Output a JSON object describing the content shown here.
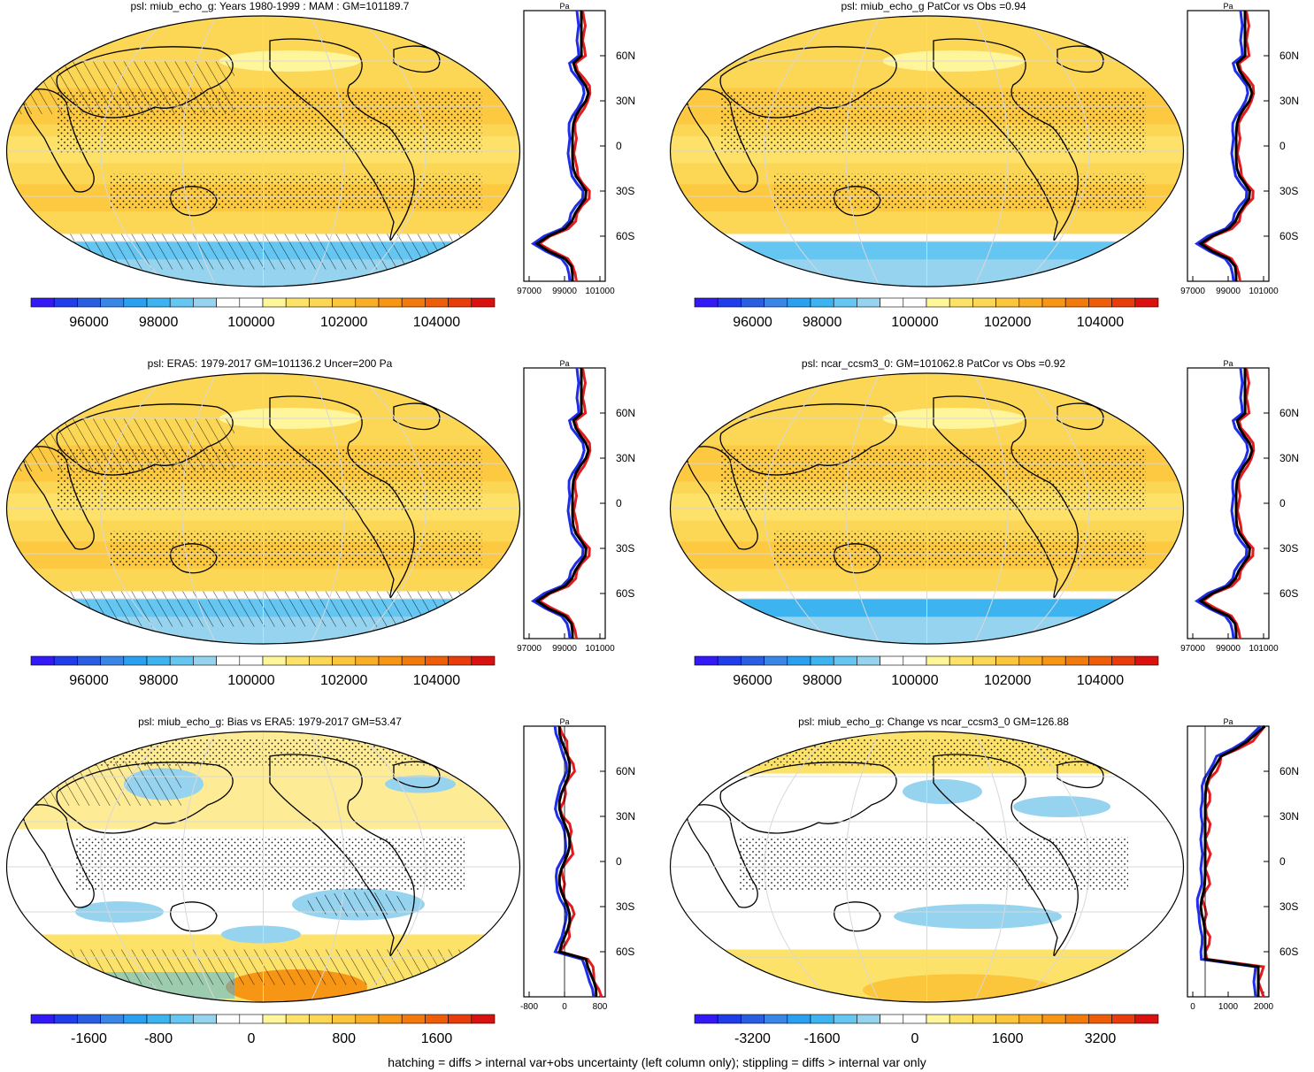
{
  "colors": {
    "ocean_fill": "#fcd655",
    "land_line": "#000000",
    "grid_line": "#d8d8d8",
    "ref_line": "#000000",
    "model_line": "#e41a1c",
    "alt_line": "#1f2de8",
    "white": "#ffffff"
  },
  "palettes": {
    "abs": [
      "#3219f5",
      "#1f3de8",
      "#2a5ee0",
      "#3a86e6",
      "#2b9ff0",
      "#3db4f0",
      "#66c6f2",
      "#95d3ef",
      "#ffffff",
      "#ffffff",
      "#fff59a",
      "#fde26a",
      "#fcd655",
      "#fbc53c",
      "#f9ae27",
      "#f79515",
      "#f2790b",
      "#ee5e09",
      "#e83d0b",
      "#d9110f"
    ],
    "bias": [
      "#3219f5",
      "#1f3de8",
      "#2a5ee0",
      "#3a86e6",
      "#2b9ff0",
      "#3db4f0",
      "#66c6f2",
      "#95d3ef",
      "#ffffff",
      "#ffffff",
      "#fff59a",
      "#fde26a",
      "#fcd655",
      "#fbc53c",
      "#f9ae27",
      "#f79515",
      "#f2790b",
      "#ee5e09",
      "#e83d0b",
      "#d9110f"
    ]
  },
  "panels": [
    {
      "id": "p1",
      "title": "psl: miub_echo_g: Years 1980-1999 : MAM : GM=101189.7",
      "kind": "abs",
      "hatch": true,
      "stipple": true,
      "colorbar": {
        "labels": [
          "96000",
          "98000",
          "100000",
          "102000",
          "104000"
        ]
      },
      "profile": {
        "unit": "Pa",
        "xticks": [
          "97000",
          "99000",
          "101000"
        ],
        "yticks": [
          "60N",
          "30N",
          "0",
          "30S",
          "60S"
        ]
      }
    },
    {
      "id": "p2",
      "title": "psl: miub_echo_g PatCor vs Obs =0.94",
      "kind": "abs",
      "hatch": false,
      "stipple": true,
      "colorbar": {
        "labels": [
          "96000",
          "98000",
          "100000",
          "102000",
          "104000"
        ]
      },
      "profile": {
        "unit": "Pa",
        "xticks": [
          "97000",
          "99000",
          "101000"
        ],
        "yticks": [
          "60N",
          "30N",
          "0",
          "30S",
          "60S"
        ]
      }
    },
    {
      "id": "p3",
      "title": "psl: ERA5: 1979-2017 GM=101136.2 Uncer=200 Pa",
      "kind": "abs",
      "hatch": true,
      "stipple": true,
      "colorbar": {
        "labels": [
          "96000",
          "98000",
          "100000",
          "102000",
          "104000"
        ]
      },
      "profile": {
        "unit": "Pa",
        "xticks": [
          "97000",
          "99000",
          "101000"
        ],
        "yticks": [
          "60N",
          "30N",
          "0",
          "30S",
          "60S"
        ]
      }
    },
    {
      "id": "p4",
      "title": "psl: ncar_ccsm3_0: GM=101062.8 PatCor vs Obs =0.92",
      "kind": "abs",
      "hatch": false,
      "stipple": true,
      "colorbar": {
        "labels": [
          "96000",
          "98000",
          "100000",
          "102000",
          "104000"
        ]
      },
      "profile": {
        "unit": "Pa",
        "xticks": [
          "97000",
          "99000",
          "101000"
        ],
        "yticks": [
          "60N",
          "30N",
          "0",
          "30S",
          "60S"
        ]
      }
    },
    {
      "id": "p5",
      "title": "psl: miub_echo_g: Bias vs ERA5: 1979-2017 GM=53.47",
      "kind": "bias",
      "hatch": true,
      "stipple": true,
      "colorbar": {
        "labels": [
          "-1600",
          "-800",
          "0",
          "800",
          "1600"
        ]
      },
      "profile": {
        "unit": "Pa",
        "xticks": [
          "-800",
          "0",
          "800"
        ],
        "yticks": [
          "60N",
          "30N",
          "0",
          "30S",
          "60S"
        ]
      }
    },
    {
      "id": "p6",
      "title": "psl: miub_echo_g: Change vs ncar_ccsm3_0 GM=126.88",
      "kind": "change",
      "hatch": false,
      "stipple": true,
      "colorbar": {
        "labels": [
          "-3200",
          "-1600",
          "0",
          "1600",
          "3200"
        ]
      },
      "profile": {
        "unit": "Pa",
        "xticks": [
          "0",
          "1000",
          "2000"
        ],
        "yticks": [
          "60N",
          "30N",
          "0",
          "30S",
          "60S"
        ]
      }
    }
  ],
  "footer": "hatching = diffs > internal var+obs uncertainty (left column only); stippling = diffs > internal var only"
}
